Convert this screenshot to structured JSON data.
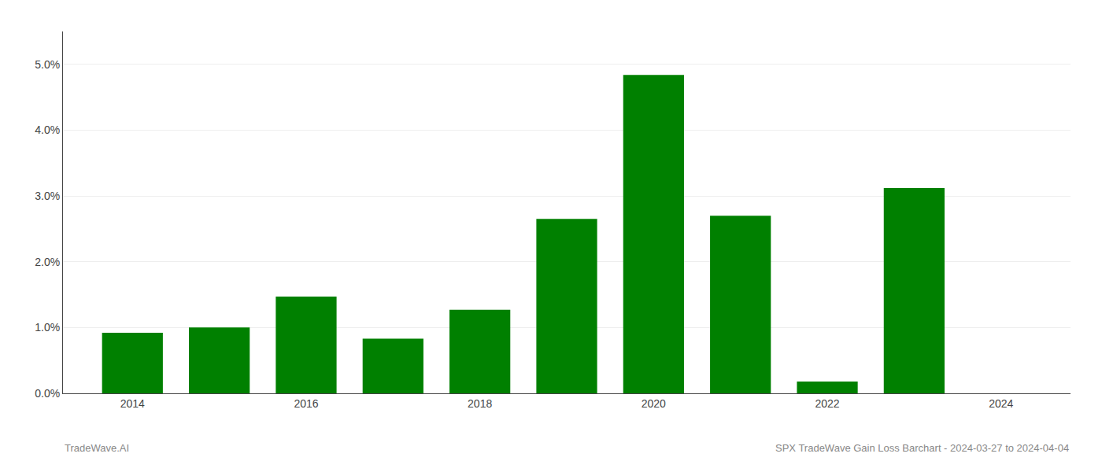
{
  "chart_data": {
    "type": "bar",
    "x": [
      2014,
      2015,
      2016,
      2017,
      2018,
      2019,
      2020,
      2021,
      2022,
      2023,
      2024
    ],
    "values": [
      0.0092,
      0.01,
      0.0147,
      0.0083,
      0.0127,
      0.0265,
      0.0484,
      0.027,
      0.0018,
      0.0312,
      0.0
    ],
    "color": "#008000",
    "xlim": [
      2013.2,
      2024.8
    ],
    "xticks": [
      2014,
      2016,
      2018,
      2020,
      2022,
      2024
    ],
    "ylim": [
      0,
      0.055
    ],
    "yticks": [
      {
        "value": 0.0,
        "label": "0.0%"
      },
      {
        "value": 0.01,
        "label": "1.0%"
      },
      {
        "value": 0.02,
        "label": "2.0%"
      },
      {
        "value": 0.03,
        "label": "3.0%"
      },
      {
        "value": 0.04,
        "label": "4.0%"
      },
      {
        "value": 0.05,
        "label": "5.0%"
      }
    ],
    "grid": true,
    "annotations": [
      "TradeWave.AI",
      "SPX TradeWave Gain Loss Barchart - 2024-03-27 to 2024-04-04"
    ]
  }
}
